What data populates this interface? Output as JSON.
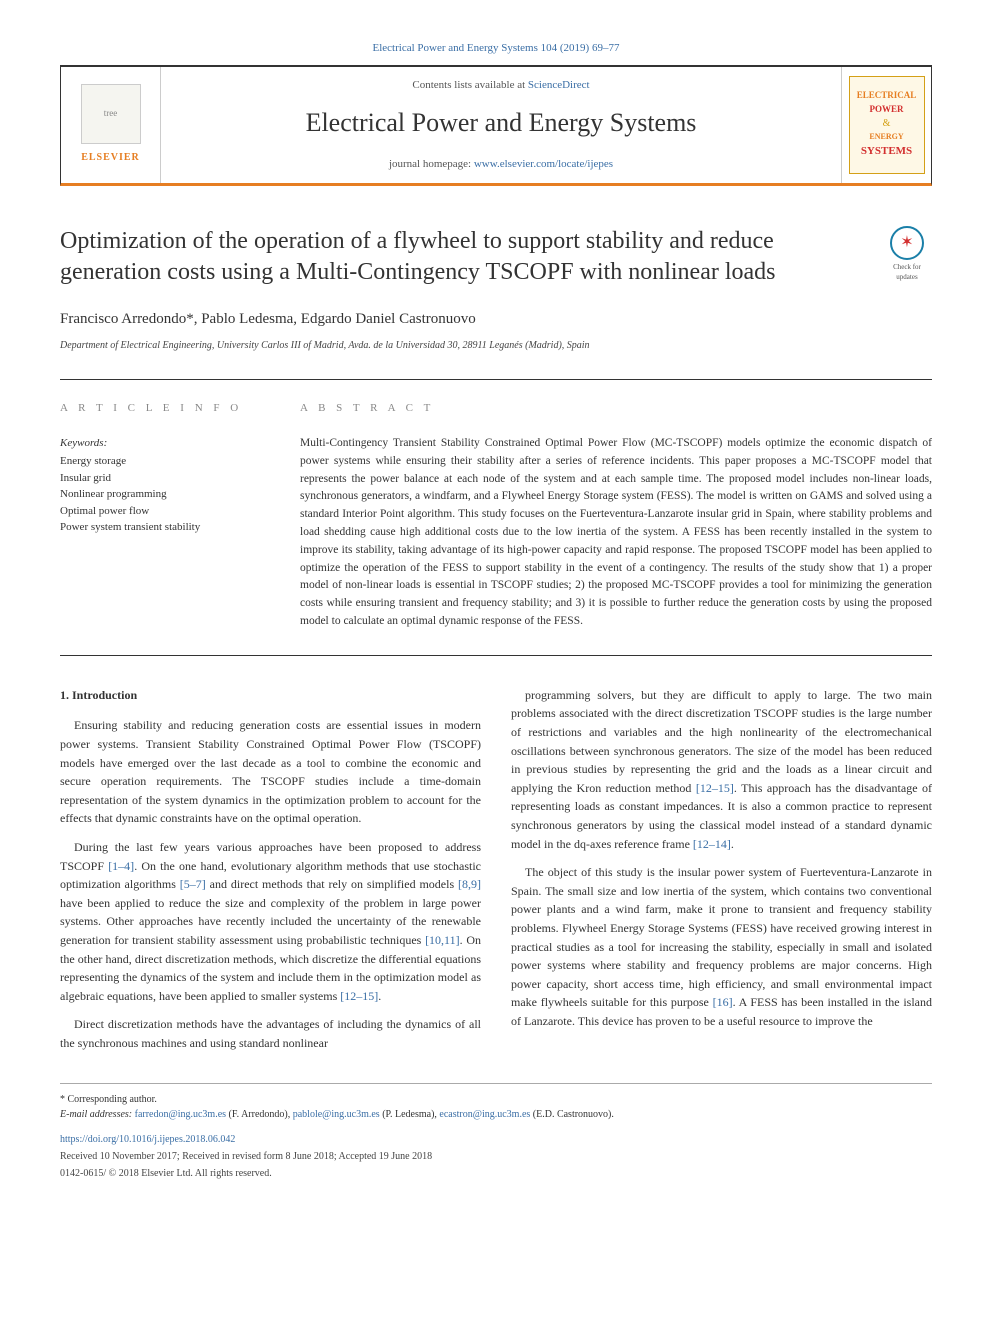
{
  "journal_ref": {
    "prefix": "Electrical Power and Energy Systems 104 (2019) 69–77",
    "link_text": "Electrical Power and Energy Systems 104 (2019) 69–77"
  },
  "header": {
    "elsevier_label": "ELSEVIER",
    "sciencedirect_prefix": "Contents lists available at ",
    "sciencedirect_link": "ScienceDirect",
    "journal_title": "Electrical Power and Energy Systems",
    "homepage_prefix": "journal homepage: ",
    "homepage_link": "www.elsevier.com/locate/ijepes",
    "cover": {
      "line1": "ELECTRICAL",
      "line2": "POWER",
      "amp": "&",
      "line3": "ENERGY",
      "line4": "SYSTEMS"
    }
  },
  "title": "Optimization of the operation of a flywheel to support stability and reduce generation costs using a Multi-Contingency TSCOPF with nonlinear loads",
  "check_updates": "Check for updates",
  "authors": "Francisco Arredondo*, Pablo Ledesma, Edgardo Daniel Castronuovo",
  "affiliation": "Department of Electrical Engineering, University Carlos III of Madrid, Avda. de la Universidad 30, 28911 Leganés (Madrid), Spain",
  "article_info": {
    "heading": "A R T I C L E   I N F O",
    "keywords_label": "Keywords:",
    "keywords": [
      "Energy storage",
      "Insular grid",
      "Nonlinear programming",
      "Optimal power flow",
      "Power system transient stability"
    ]
  },
  "abstract": {
    "heading": "A B S T R A C T",
    "text": "Multi-Contingency Transient Stability Constrained Optimal Power Flow (MC-TSCOPF) models optimize the economic dispatch of power systems while ensuring their stability after a series of reference incidents. This paper proposes a MC-TSCOPF model that represents the power balance at each node of the system and at each sample time. The proposed model includes non-linear loads, synchronous generators, a windfarm, and a Flywheel Energy Storage system (FESS). The model is written on GAMS and solved using a standard Interior Point algorithm. This study focuses on the Fuerteventura-Lanzarote insular grid in Spain, where stability problems and load shedding cause high additional costs due to the low inertia of the system. A FESS has been recently installed in the system to improve its stability, taking advantage of its high-power capacity and rapid response. The proposed TSCOPF model has been applied to optimize the operation of the FESS to support stability in the event of a contingency. The results of the study show that 1) a proper model of non-linear loads is essential in TSCOPF studies; 2) the proposed MC-TSCOPF provides a tool for minimizing the generation costs while ensuring transient and frequency stability; and 3) it is possible to further reduce the generation costs by using the proposed model to calculate an optimal dynamic response of the FESS."
  },
  "body": {
    "intro_heading": "1. Introduction",
    "p1": "Ensuring stability and reducing generation costs are essential issues in modern power systems. Transient Stability Constrained Optimal Power Flow (TSCOPF) models have emerged over the last decade as a tool to combine the economic and secure operation requirements. The TSCOPF studies include a time-domain representation of the system dynamics in the optimization problem to account for the effects that dynamic constraints have on the optimal operation.",
    "p2a": "During the last few years various approaches have been proposed to address TSCOPF ",
    "p2_ref1": "[1–4]",
    "p2b": ". On the one hand, evolutionary algorithm methods that use stochastic optimization algorithms ",
    "p2_ref2": "[5–7]",
    "p2c": " and direct methods that rely on simplified models ",
    "p2_ref3": "[8,9]",
    "p2d": " have been applied to reduce the size and complexity of the problem in large power systems. Other approaches have recently included the uncertainty of the renewable generation for transient stability assessment using probabilistic techniques ",
    "p2_ref4": "[10,11]",
    "p2e": ". On the other hand, direct discretization methods, which discretize the differential equations representing the dynamics of the system and include them in the optimization model as algebraic equations, have been applied to smaller systems ",
    "p2_ref5": "[12–15]",
    "p2f": ".",
    "p3": "Direct discretization methods have the advantages of including the dynamics of all the synchronous machines and using standard nonlinear",
    "p4a": "programming solvers, but they are difficult to apply to large. The two main problems associated with the direct discretization TSCOPF studies is the large number of restrictions and variables and the high nonlinearity of the electromechanical oscillations between synchronous generators. The size of the model has been reduced in previous studies by representing the grid and the loads as a linear circuit and applying the Kron reduction method ",
    "p4_ref1": "[12–15]",
    "p4b": ". This approach has the disadvantage of representing loads as constant impedances. It is also a common practice to represent synchronous generators by using the classical model instead of a standard dynamic model in the dq-axes reference frame ",
    "p4_ref2": "[12–14]",
    "p4c": ".",
    "p5a": "The object of this study is the insular power system of Fuerteventura-Lanzarote in Spain. The small size and low inertia of the system, which contains two conventional power plants and a wind farm, make it prone to transient and frequency stability problems. Flywheel Energy Storage Systems (FESS) have received growing interest in practical studies as a tool for increasing the stability, especially in small and isolated power systems where stability and frequency problems are major concerns. High power capacity, short access time, high efficiency, and small environmental impact make flywheels suitable for this purpose ",
    "p5_ref1": "[16]",
    "p5b": ". A FESS has been installed in the island of Lanzarote. This device has proven to be a useful resource to improve the"
  },
  "footnotes": {
    "corresp": "* Corresponding author.",
    "email_label": "E-mail addresses: ",
    "email1": "farredon@ing.uc3m.es",
    "email1_name": " (F. Arredondo), ",
    "email2": "pablole@ing.uc3m.es",
    "email2_name": " (P. Ledesma), ",
    "email3": "ecastron@ing.uc3m.es",
    "email3_name": " (E.D. Castronuovo).",
    "doi": "https://doi.org/10.1016/j.ijepes.2018.06.042",
    "received": "Received 10 November 2017; Received in revised form 8 June 2018; Accepted 19 June 2018",
    "copyright": "0142-0615/ © 2018 Elsevier Ltd. All rights reserved."
  },
  "colors": {
    "link": "#3a6ea5",
    "orange": "#e67e22",
    "red": "#d32f2f",
    "gold": "#d4a017"
  }
}
